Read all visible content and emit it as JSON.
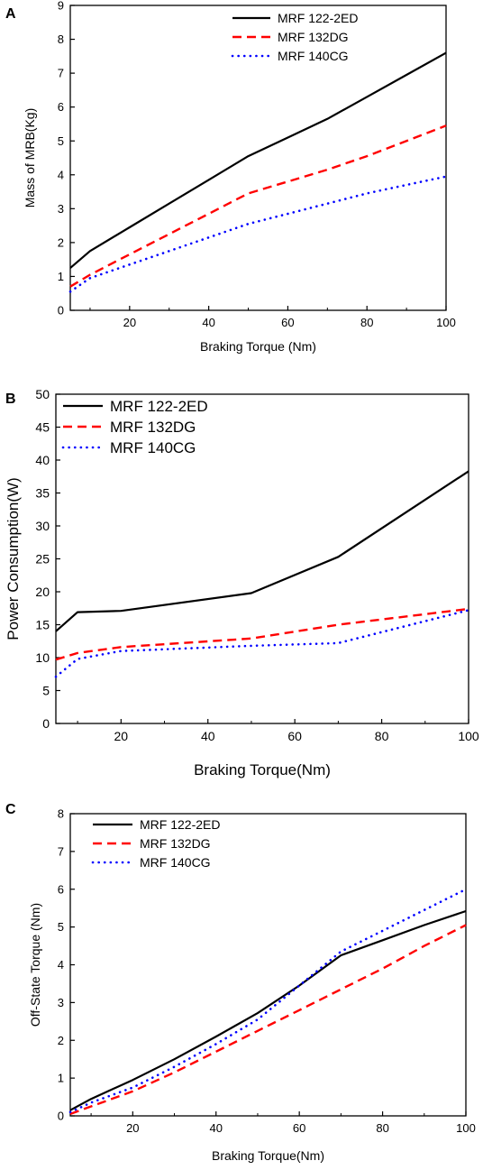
{
  "chart_data": [
    {
      "type": "line",
      "panel_label": "A",
      "title": "",
      "xlabel": "Braking Torque (Nm)",
      "ylabel": "Mass of MRB(Kg)",
      "xlim": [
        5,
        100
      ],
      "ylim": [
        0,
        9
      ],
      "xticks": [
        20,
        40,
        60,
        80,
        100
      ],
      "yticks": [
        0,
        1,
        2,
        3,
        4,
        5,
        6,
        7,
        8,
        9
      ],
      "grid": false,
      "legend_position": "top-center",
      "series": [
        {
          "name": "MRF 122-2ED",
          "color": "#000000",
          "style": "solid",
          "x": [
            5,
            10,
            20,
            30,
            40,
            50,
            60,
            70,
            80,
            90,
            100
          ],
          "y": [
            1.25,
            1.75,
            2.45,
            3.15,
            3.85,
            4.55,
            5.1,
            5.65,
            6.3,
            6.95,
            7.6
          ]
        },
        {
          "name": "MRF 132DG",
          "color": "#ff0000",
          "style": "dashed",
          "x": [
            5,
            10,
            20,
            30,
            40,
            50,
            60,
            70,
            80,
            90,
            100
          ],
          "y": [
            0.7,
            1.05,
            1.65,
            2.25,
            2.85,
            3.45,
            3.8,
            4.15,
            4.55,
            5.0,
            5.45
          ]
        },
        {
          "name": "MRF 140CG",
          "color": "#0000ff",
          "style": "dotted",
          "x": [
            5,
            10,
            20,
            30,
            40,
            50,
            60,
            70,
            80,
            90,
            100
          ],
          "y": [
            0.55,
            0.95,
            1.35,
            1.75,
            2.15,
            2.55,
            2.85,
            3.15,
            3.45,
            3.7,
            3.95
          ]
        }
      ]
    },
    {
      "type": "line",
      "panel_label": "B",
      "title": "",
      "xlabel": "Braking Torque(Nm)",
      "ylabel": "Power Consumption(W)",
      "xlim": [
        5,
        100
      ],
      "ylim": [
        0,
        50
      ],
      "xticks": [
        20,
        40,
        60,
        80,
        100
      ],
      "yticks": [
        0,
        5,
        10,
        15,
        20,
        25,
        30,
        35,
        40,
        45,
        50
      ],
      "grid": false,
      "legend_position": "top-left",
      "series": [
        {
          "name": "MRF 122-2ED",
          "color": "#000000",
          "style": "solid",
          "x": [
            5,
            10,
            20,
            50,
            70,
            100
          ],
          "y": [
            14,
            16.9,
            17.1,
            19.8,
            25.3,
            38.3
          ]
        },
        {
          "name": "MRF 132DG",
          "color": "#ff0000",
          "style": "dashed",
          "x": [
            5,
            10,
            20,
            50,
            70,
            100
          ],
          "y": [
            9.7,
            10.7,
            11.6,
            12.9,
            15.0,
            17.4
          ]
        },
        {
          "name": "MRF 140CG",
          "color": "#0000ff",
          "style": "dotted",
          "x": [
            5,
            10,
            20,
            50,
            70,
            100
          ],
          "y": [
            7.1,
            9.8,
            11.0,
            11.8,
            12.2,
            17.2
          ]
        }
      ]
    },
    {
      "type": "line",
      "panel_label": "C",
      "title": "",
      "xlabel": "Braking Torque(Nm)",
      "ylabel": "Off-State Torque (Nm)",
      "xlim": [
        5,
        100
      ],
      "ylim": [
        0,
        8
      ],
      "xticks": [
        20,
        40,
        60,
        80,
        100
      ],
      "yticks": [
        0,
        1,
        2,
        3,
        4,
        5,
        6,
        7,
        8
      ],
      "grid": false,
      "legend_position": "top-left",
      "series": [
        {
          "name": "MRF 122-2ED",
          "color": "#000000",
          "style": "solid",
          "x": [
            5,
            10,
            20,
            30,
            40,
            50,
            60,
            70,
            80,
            90,
            100
          ],
          "y": [
            0.15,
            0.45,
            0.95,
            1.5,
            2.1,
            2.72,
            3.45,
            4.25,
            4.65,
            5.05,
            5.42
          ]
        },
        {
          "name": "MRF 132DG",
          "color": "#ff0000",
          "style": "dashed",
          "x": [
            5,
            10,
            20,
            30,
            40,
            50,
            60,
            70,
            80,
            90,
            100
          ],
          "y": [
            0.05,
            0.25,
            0.65,
            1.15,
            1.7,
            2.25,
            2.8,
            3.35,
            3.9,
            4.5,
            5.05
          ]
        },
        {
          "name": "MRF 140CG",
          "color": "#0000ff",
          "style": "dotted",
          "x": [
            5,
            10,
            20,
            30,
            40,
            50,
            60,
            70,
            80,
            90,
            100
          ],
          "y": [
            0.1,
            0.35,
            0.75,
            1.3,
            1.9,
            2.55,
            3.45,
            4.35,
            4.9,
            5.45,
            6.0
          ]
        }
      ]
    }
  ]
}
